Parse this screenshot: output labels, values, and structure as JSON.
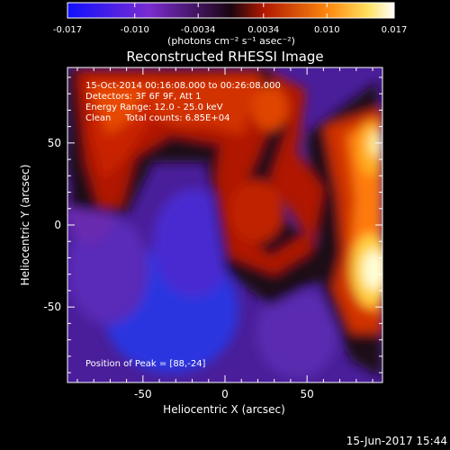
{
  "colorbar": {
    "ticks": [
      "-0.017",
      "-0.010",
      "-0.0034",
      "0.0034",
      "0.010",
      "0.017"
    ],
    "unit_label": "(photons cm⁻² s⁻¹ asec⁻²)"
  },
  "chart_data": {
    "type": "heatmap",
    "title": "Reconstructed RHESSI Image",
    "xlabel": "Heliocentric X (arcsec)",
    "ylabel": "Heliocentric Y (arcsec)",
    "xlim": [
      -96,
      96
    ],
    "ylim": [
      -96,
      96
    ],
    "xticks": [
      "-50",
      "0",
      "50"
    ],
    "yticks": [
      "50",
      "0",
      "-50"
    ],
    "color_range": [
      -0.017,
      0.017
    ],
    "colormap": [
      "#1a1aff",
      "#7a2cd0",
      "#2a0a2a",
      "#a01000",
      "#ff6a00",
      "#ffd84a",
      "#ffffff"
    ],
    "annotations": [
      "15-Oct-2014 00:16:08.000 to 00:26:08.000",
      "Detectors: 3F 6F 9F, Att 1",
      "Energy Range: 12.0 - 25.0 keV",
      "Clean     Total counts: 6.85E+04"
    ],
    "peak_label": "Position of Peak = [88,-24]",
    "peak_position": [
      88,
      -24
    ]
  },
  "footer": {
    "date": "15-Jun-2017 15:44"
  }
}
